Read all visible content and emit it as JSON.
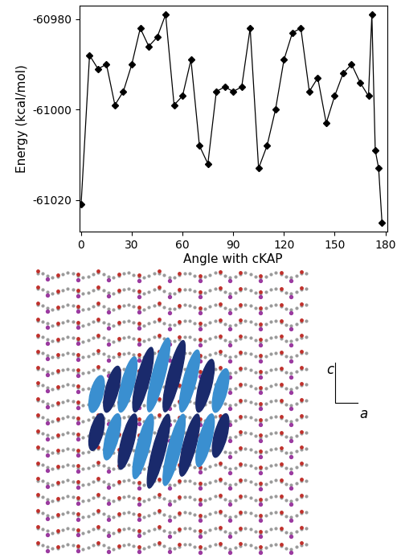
{
  "chart_data": {
    "type": "line",
    "x_label": "Angle with cKAP",
    "y_label": "Energy (kcal/mol)",
    "x": [
      0,
      5,
      10,
      15,
      20,
      25,
      30,
      35,
      40,
      45,
      50,
      55,
      60,
      65,
      70,
      75,
      80,
      85,
      90,
      95,
      100,
      105,
      110,
      115,
      120,
      125,
      130,
      135,
      140,
      145,
      150,
      155,
      160,
      165,
      170,
      172,
      174,
      176,
      178
    ],
    "series": [
      {
        "name": "Energy",
        "color": "#000000",
        "marker": "diamond",
        "line_style": "solid",
        "values": [
          -61021,
          -60988,
          -60991,
          -60990,
          -60999,
          -60996,
          -60990,
          -60982,
          -60986,
          -60984,
          -60979,
          -60999,
          -60997,
          -60989,
          -61008,
          -61012,
          -60996,
          -60995,
          -60996,
          -60995,
          -60982,
          -61013,
          -61008,
          -61000,
          -60989,
          -60983,
          -60982,
          -60996,
          -60993,
          -61003,
          -60997,
          -60992,
          -60990,
          -60994,
          -60997,
          -60979,
          -61009,
          -61013,
          -61025
        ]
      }
    ],
    "xlim": [
      -1,
      181
    ],
    "xticks": [
      0,
      30,
      60,
      90,
      120,
      150,
      180
    ],
    "ylim": [
      -61027,
      -60977
    ],
    "yticks": [
      -61020,
      -61000,
      -60980
    ],
    "grid": false
  },
  "image_axes": {
    "vertical": "c",
    "horizontal": "a"
  }
}
